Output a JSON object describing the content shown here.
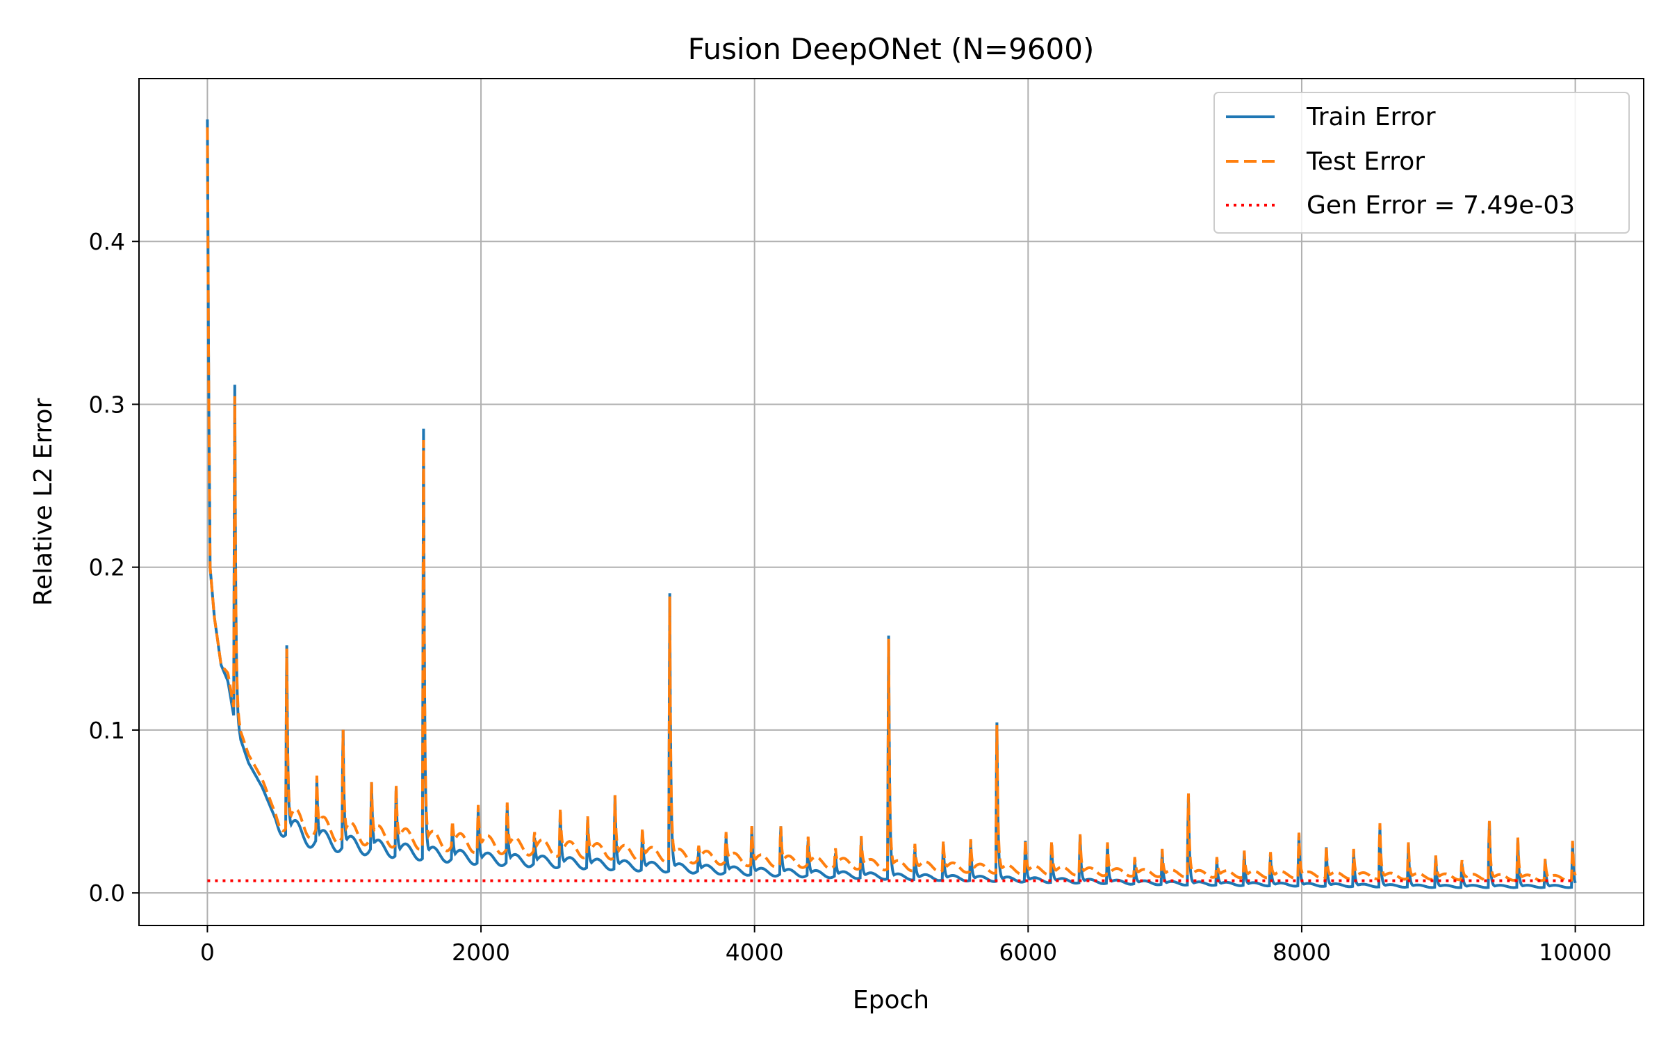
{
  "chart_data": {
    "type": "line",
    "title": "Fusion DeepONet (N=9600)",
    "xlabel": "Epoch",
    "ylabel": "Relative L2 Error",
    "xlim": [
      -500,
      10500
    ],
    "ylim": [
      -0.02,
      0.5
    ],
    "x_ticks": [
      0,
      2000,
      4000,
      6000,
      8000,
      10000
    ],
    "x_tick_labels": [
      "0",
      "2000",
      "4000",
      "6000",
      "8000",
      "10000"
    ],
    "y_ticks": [
      0.0,
      0.1,
      0.2,
      0.3,
      0.4
    ],
    "y_tick_labels": [
      "0.0",
      "0.1",
      "0.2",
      "0.3",
      "0.4"
    ],
    "grid": true,
    "legend_position": "top-right",
    "colors": {
      "train": "#1f77b4",
      "test": "#ff7f0e",
      "gen": "#ff0000",
      "grid": "#b0b0b0"
    },
    "epochs": 10000,
    "series": [
      {
        "name": "Train Error",
        "style": "solid",
        "color": "#1f77b4",
        "baseline": [
          [
            0,
            0.475
          ],
          [
            10,
            0.3
          ],
          [
            20,
            0.2
          ],
          [
            50,
            0.17
          ],
          [
            100,
            0.14
          ],
          [
            150,
            0.13
          ],
          [
            200,
            0.105
          ],
          [
            300,
            0.08
          ],
          [
            400,
            0.065
          ],
          [
            500,
            0.045
          ],
          [
            700,
            0.035
          ],
          [
            1000,
            0.03
          ],
          [
            1500,
            0.025
          ],
          [
            2000,
            0.021
          ],
          [
            3000,
            0.017
          ],
          [
            4000,
            0.013
          ],
          [
            5000,
            0.01
          ],
          [
            6000,
            0.008
          ],
          [
            7000,
            0.006
          ],
          [
            8000,
            0.005
          ],
          [
            9000,
            0.004
          ],
          [
            10000,
            0.004
          ]
        ],
        "spikes": [
          [
            200,
            0.312
          ],
          [
            580,
            0.152
          ],
          [
            800,
            0.07
          ],
          [
            990,
            0.12
          ],
          [
            1200,
            0.068
          ],
          [
            1380,
            0.065
          ],
          [
            1580,
            0.285
          ],
          [
            1790,
            0.045
          ],
          [
            1980,
            0.052
          ],
          [
            2190,
            0.062
          ],
          [
            2390,
            0.038
          ],
          [
            2580,
            0.05
          ],
          [
            2780,
            0.045
          ],
          [
            2980,
            0.06
          ],
          [
            3180,
            0.038
          ],
          [
            3380,
            0.184
          ],
          [
            3590,
            0.03
          ],
          [
            3790,
            0.04
          ],
          [
            3980,
            0.04
          ],
          [
            4190,
            0.049
          ],
          [
            4390,
            0.038
          ],
          [
            4590,
            0.028
          ],
          [
            4780,
            0.033
          ],
          [
            4980,
            0.158
          ],
          [
            5170,
            0.032
          ],
          [
            5380,
            0.03
          ],
          [
            5580,
            0.032
          ],
          [
            5770,
            0.132
          ],
          [
            5980,
            0.032
          ],
          [
            6170,
            0.036
          ],
          [
            6380,
            0.035
          ],
          [
            6580,
            0.03
          ],
          [
            6780,
            0.02
          ],
          [
            6980,
            0.025
          ],
          [
            7170,
            0.075
          ],
          [
            7380,
            0.02
          ],
          [
            7580,
            0.025
          ],
          [
            7770,
            0.028
          ],
          [
            7980,
            0.037
          ],
          [
            8180,
            0.028
          ],
          [
            8380,
            0.026
          ],
          [
            8570,
            0.05
          ],
          [
            8780,
            0.03
          ],
          [
            8980,
            0.022
          ],
          [
            9170,
            0.022
          ],
          [
            9370,
            0.055
          ],
          [
            9580,
            0.033
          ],
          [
            9780,
            0.02
          ],
          [
            9980,
            0.03
          ]
        ]
      },
      {
        "name": "Test Error",
        "style": "dashed",
        "color": "#ff7f0e",
        "baseline": [
          [
            0,
            0.47
          ],
          [
            10,
            0.3
          ],
          [
            20,
            0.2
          ],
          [
            50,
            0.17
          ],
          [
            100,
            0.14
          ],
          [
            150,
            0.135
          ],
          [
            200,
            0.11
          ],
          [
            300,
            0.085
          ],
          [
            400,
            0.07
          ],
          [
            500,
            0.048
          ],
          [
            700,
            0.042
          ],
          [
            1000,
            0.037
          ],
          [
            1500,
            0.033
          ],
          [
            2000,
            0.03
          ],
          [
            3000,
            0.025
          ],
          [
            4000,
            0.02
          ],
          [
            5000,
            0.017
          ],
          [
            6000,
            0.014
          ],
          [
            7000,
            0.012
          ],
          [
            8000,
            0.011
          ],
          [
            9000,
            0.01
          ],
          [
            10000,
            0.009
          ]
        ],
        "spikes": [
          [
            200,
            0.305
          ],
          [
            580,
            0.15
          ],
          [
            800,
            0.072
          ],
          [
            990,
            0.118
          ],
          [
            1200,
            0.068
          ],
          [
            1380,
            0.066
          ],
          [
            1580,
            0.278
          ],
          [
            1790,
            0.048
          ],
          [
            1980,
            0.054
          ],
          [
            2190,
            0.063
          ],
          [
            2390,
            0.04
          ],
          [
            2580,
            0.052
          ],
          [
            2780,
            0.047
          ],
          [
            2980,
            0.06
          ],
          [
            3180,
            0.04
          ],
          [
            3380,
            0.182
          ],
          [
            3590,
            0.031
          ],
          [
            3790,
            0.042
          ],
          [
            3980,
            0.041
          ],
          [
            4190,
            0.047
          ],
          [
            4390,
            0.039
          ],
          [
            4590,
            0.03
          ],
          [
            4780,
            0.035
          ],
          [
            4980,
            0.156
          ],
          [
            5170,
            0.034
          ],
          [
            5380,
            0.032
          ],
          [
            5580,
            0.033
          ],
          [
            5770,
            0.128
          ],
          [
            5980,
            0.033
          ],
          [
            6170,
            0.037
          ],
          [
            6380,
            0.036
          ],
          [
            6580,
            0.031
          ],
          [
            6780,
            0.022
          ],
          [
            6980,
            0.027
          ],
          [
            7170,
            0.075
          ],
          [
            7380,
            0.022
          ],
          [
            7580,
            0.026
          ],
          [
            7770,
            0.029
          ],
          [
            7980,
            0.037
          ],
          [
            8180,
            0.029
          ],
          [
            8380,
            0.027
          ],
          [
            8570,
            0.052
          ],
          [
            8780,
            0.031
          ],
          [
            8980,
            0.023
          ],
          [
            9170,
            0.023
          ],
          [
            9370,
            0.054
          ],
          [
            9580,
            0.034
          ],
          [
            9780,
            0.021
          ],
          [
            9980,
            0.032
          ]
        ]
      },
      {
        "name": "Gen Error = 7.49e-03",
        "style": "dotted",
        "color": "#ff0000",
        "x": [
          0,
          10000
        ],
        "y": [
          0.00749,
          0.00749
        ]
      }
    ]
  }
}
